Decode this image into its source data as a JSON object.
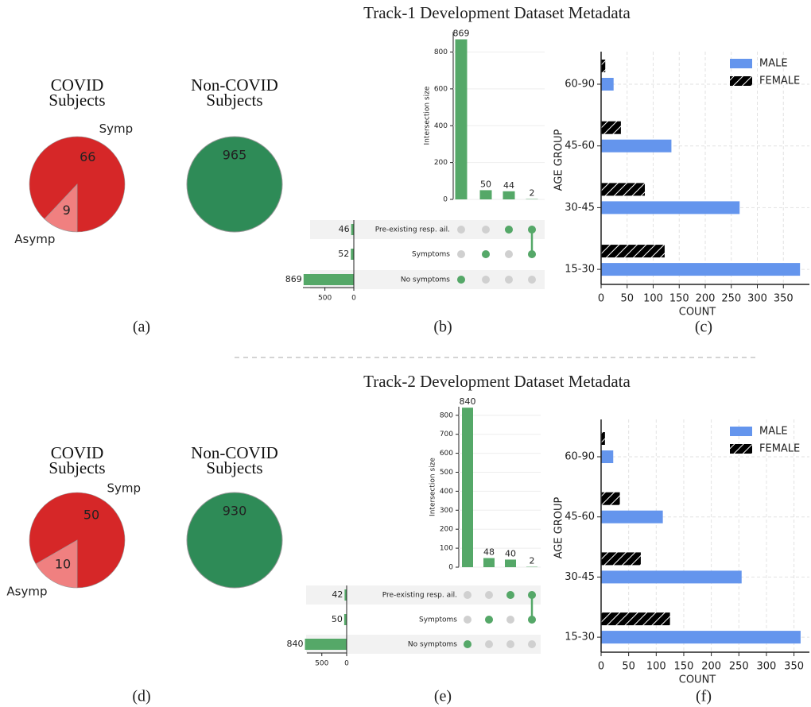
{
  "tracks": [
    {
      "title": "Track-1 Development Dataset Metadata",
      "panel_labels": [
        "(a)",
        "(b)",
        "(c)"
      ]
    },
    {
      "title": "Track-2 Development Dataset Metadata",
      "panel_labels": [
        "(d)",
        "(e)",
        "(f)"
      ]
    }
  ],
  "chart_data": [
    {
      "type": "pie",
      "title": "COVID Subjects",
      "categories": [
        "Symp",
        "Asymp"
      ],
      "values": [
        66,
        9
      ],
      "colors": [
        "#d62728",
        "#f08080"
      ]
    },
    {
      "type": "pie",
      "title": "Non-COVID Subjects",
      "categories": [
        null
      ],
      "values": [
        965
      ],
      "colors": [
        "#2e8b57"
      ]
    },
    {
      "type": "upset",
      "ylabel": "Intersection size",
      "values": [
        869,
        50,
        44,
        2
      ],
      "color": "#55a868",
      "ylim": [
        0,
        910
      ],
      "yticks": [
        0,
        200,
        400,
        600,
        800
      ],
      "sets": [
        "Pre-existing resp. ail.",
        "Symptoms",
        "No symptoms"
      ],
      "set_sizes": [
        46,
        52,
        869
      ],
      "set_size_lim": [
        0,
        880
      ],
      "set_size_ticks": [
        0,
        500
      ],
      "intersections": [
        [
          2
        ],
        [
          1
        ],
        [
          0
        ],
        [
          0,
          1
        ]
      ]
    },
    {
      "type": "hbar",
      "categories": [
        "60-90",
        "45-60",
        "30-45",
        "15-30"
      ],
      "xlabel": "COUNT",
      "ylabel": "AGE GROUP",
      "series": [
        {
          "name": "MALE",
          "color": "#6495ed",
          "values": [
            24,
            135,
            266,
            382
          ]
        },
        {
          "name": "FEMALE",
          "color": "#6495ed",
          "hatch": "//",
          "values": [
            8,
            38,
            84,
            122
          ]
        }
      ],
      "xlim": [
        0,
        400
      ],
      "xticks": [
        0,
        50,
        100,
        150,
        200,
        250,
        300,
        350
      ],
      "grid": true,
      "legend": "upper right"
    },
    {
      "type": "pie",
      "title": "COVID Subjects",
      "categories": [
        "Symp",
        "Asymp"
      ],
      "values": [
        50,
        10
      ],
      "colors": [
        "#d62728",
        "#f08080"
      ]
    },
    {
      "type": "pie",
      "title": "Non-COVID Subjects",
      "categories": [
        null
      ],
      "values": [
        930
      ],
      "colors": [
        "#2e8b57"
      ]
    },
    {
      "type": "upset",
      "ylabel": "Intersection size",
      "values": [
        840,
        48,
        40,
        2
      ],
      "color": "#55a868",
      "ylim": [
        0,
        845
      ],
      "yticks": [
        0,
        100,
        200,
        300,
        400,
        500,
        600,
        700,
        800
      ],
      "sets": [
        "Pre-existing resp. ail.",
        "Symptoms",
        "No symptoms"
      ],
      "set_sizes": [
        42,
        50,
        840
      ],
      "set_size_lim": [
        0,
        800
      ],
      "set_size_ticks": [
        0,
        500
      ],
      "intersections": [
        [
          2
        ],
        [
          1
        ],
        [
          0
        ],
        [
          0,
          1
        ]
      ]
    },
    {
      "type": "hbar",
      "categories": [
        "60-90",
        "45-60",
        "30-45",
        "15-30"
      ],
      "xlabel": "COUNT",
      "ylabel": "AGE GROUP",
      "series": [
        {
          "name": "MALE",
          "color": "#6495ed",
          "values": [
            22,
            112,
            255,
            362
          ]
        },
        {
          "name": "FEMALE",
          "color": "#6495ed",
          "hatch": "//",
          "values": [
            7,
            34,
            72,
            125
          ]
        }
      ],
      "xlim": [
        0,
        378
      ],
      "xticks": [
        0,
        50,
        100,
        150,
        200,
        250,
        300,
        350
      ],
      "grid": true,
      "legend": "upper right"
    }
  ]
}
